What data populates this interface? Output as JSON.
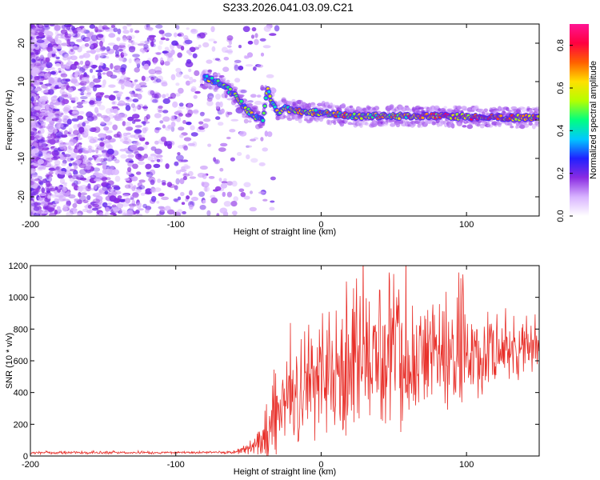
{
  "title": "S233.2026.041.03.09.C21",
  "chart_data": [
    {
      "type": "heatmap",
      "xlabel": "Height of straight line (km)",
      "ylabel": "Frequency (Hz)",
      "xlim": [
        -200,
        150
      ],
      "ylim": [
        -25,
        25
      ],
      "xticks": [
        -200,
        -100,
        0,
        100
      ],
      "yticks": [
        -20,
        -10,
        0,
        10,
        20
      ],
      "colorbar": {
        "label": "Normalized spectral amplitude",
        "range": [
          0,
          0.9
        ],
        "ticks": [
          0.0,
          0.2,
          0.4,
          0.6,
          0.8
        ],
        "colors": [
          "#ffffff",
          "#d8b3ff",
          "#8a2be2",
          "#2020ff",
          "#00c8ff",
          "#00ff80",
          "#b4ff00",
          "#ffe000",
          "#ff6000",
          "#ff0040",
          "#ff1493"
        ]
      },
      "ridge": {
        "x": [
          -80,
          -72,
          -64,
          -58,
          -52,
          -46,
          -40,
          -37,
          -34,
          -30,
          -25,
          -20,
          -10,
          0,
          20,
          40,
          60,
          80,
          100,
          120,
          150
        ],
        "y": [
          11,
          10,
          8,
          6,
          3,
          1,
          0,
          8,
          5,
          2,
          3,
          2.5,
          2,
          2,
          1,
          1,
          1,
          1,
          0.8,
          0.7,
          0.6
        ]
      }
    },
    {
      "type": "line",
      "xlabel": "Height of straight line (km)",
      "ylabel": "SNR (10 * v/v)",
      "xlim": [
        -200,
        150
      ],
      "ylim": [
        0,
        1200
      ],
      "xticks": [
        -200,
        -100,
        0,
        100
      ],
      "yticks": [
        0,
        200,
        400,
        600,
        800,
        1000,
        1200
      ],
      "series": [
        {
          "name": "SNR",
          "color": "#e8302a",
          "envelope": {
            "x": [
              -200,
              -60,
              -45,
              -35,
              -25,
              -15,
              0,
              20,
              40,
              60,
              80,
              100,
              120,
              150
            ],
            "mean": [
              20,
              22,
              50,
              150,
              300,
              420,
              500,
              600,
              650,
              650,
              640,
              630,
              650,
              680
            ],
            "amplitude": [
              10,
              10,
              60,
              300,
              400,
              380,
              450,
              500,
              520,
              550,
              480,
              420,
              260,
              160
            ]
          }
        }
      ]
    }
  ]
}
